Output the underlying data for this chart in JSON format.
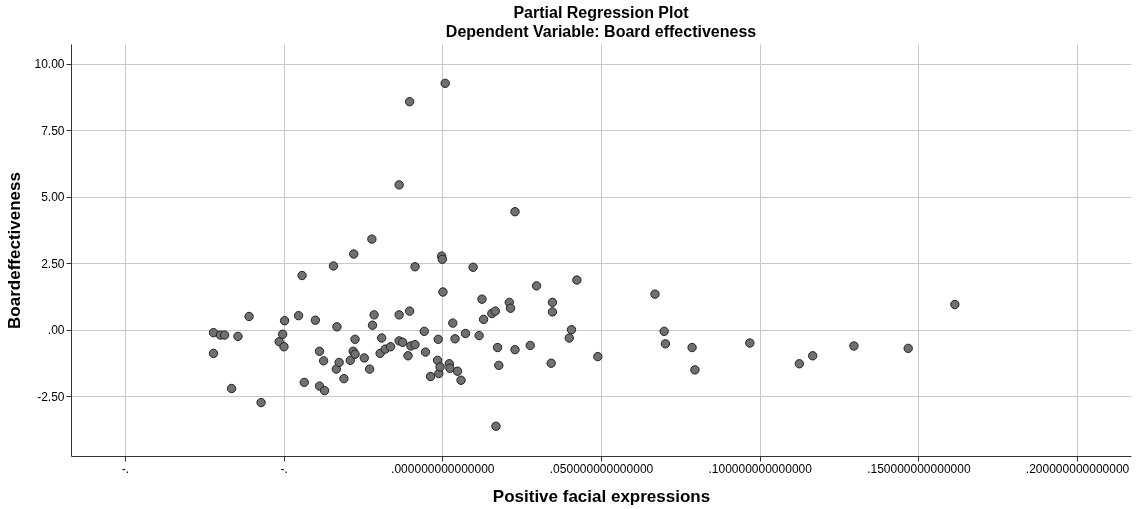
{
  "chart_data": {
    "type": "scatter",
    "title": "Partial Regression Plot",
    "subtitle": "Dependent Variable: Board effectiveness",
    "xlabel": "Positive facial expressions",
    "ylabel": "Boardeffectiveness",
    "x": [
      -0.0721,
      -0.0721,
      -0.0699,
      -0.0686,
      -0.0644,
      -0.0609,
      -0.0664,
      -0.0571,
      -0.0514,
      -0.0503,
      -0.0499,
      -0.0497,
      -0.0453,
      -0.0435,
      -0.0442,
      -0.04,
      -0.0387,
      -0.0387,
      -0.0374,
      -0.0371,
      -0.0343,
      -0.0332,
      -0.0334,
      -0.0325,
      -0.031,
      -0.029,
      -0.0281,
      -0.0279,
      -0.0275,
      -0.0275,
      -0.0246,
      -0.0229,
      -0.0222,
      -0.022,
      -0.0215,
      -0.0196,
      -0.0191,
      -0.018,
      -0.0163,
      -0.0136,
      -0.0136,
      -0.0136,
      -0.0125,
      -0.0108,
      -0.0103,
      -0.0103,
      -0.0099,
      -0.0086,
      -0.0086,
      -0.0057,
      -0.0053,
      -0.0037,
      -0.0015,
      -0.0013,
      -0.0011,
      -0.0007,
      -0.0002,
      0.0,
      0.0002,
      0.0009,
      0.0022,
      0.0024,
      0.0033,
      0.004,
      0.0048,
      0.0059,
      0.0073,
      0.0097,
      0.0116,
      0.0125,
      0.013,
      0.0156,
      0.0167,
      0.0169,
      0.0174,
      0.0178,
      0.0211,
      0.0215,
      0.0229,
      0.0229,
      0.0277,
      0.0297,
      0.0343,
      0.0347,
      0.0347,
      0.04,
      0.0407,
      0.0424,
      0.049,
      0.067,
      0.0699,
      0.0703,
      0.0787,
      0.0796,
      0.0969,
      0.1125,
      0.1167,
      0.1297,
      0.1468,
      0.1615
    ],
    "values": [
      -0.11,
      -0.89,
      -0.2,
      -0.2,
      -0.25,
      0.5,
      -2.21,
      -2.74,
      -0.45,
      -0.17,
      -0.64,
      0.34,
      0.53,
      -1.98,
      2.04,
      0.36,
      -0.81,
      -2.12,
      -1.17,
      -2.29,
      2.4,
      0.11,
      -1.48,
      -1.23,
      -1.84,
      -1.15,
      -0.81,
      2.85,
      -0.36,
      -0.92,
      -1.06,
      -1.48,
      3.41,
      0.17,
      0.56,
      -0.89,
      -0.31,
      -0.73,
      -0.64,
      5.45,
      0.56,
      -0.42,
      -0.47,
      -0.98,
      8.58,
      0.7,
      -0.61,
      2.37,
      -0.56,
      -0.06,
      -0.84,
      -1.76,
      -1.15,
      -0.36,
      -1.65,
      -1.4,
      2.77,
      2.65,
      1.42,
      9.27,
      -1.28,
      -1.45,
      0.25,
      -0.34,
      -1.56,
      -1.9,
      -0.14,
      2.35,
      -0.22,
      1.15,
      0.39,
      0.61,
      0.7,
      -3.63,
      -0.67,
      -1.34,
      1.03,
      0.81,
      4.44,
      -0.75,
      -0.59,
      1.65,
      -1.26,
      1.03,
      0.67,
      -0.31,
      0.0,
      1.87,
      -1.01,
      1.34,
      -0.06,
      -0.53,
      -0.67,
      -1.51,
      -0.5,
      -1.28,
      -0.98,
      -0.61,
      -0.7,
      0.95
    ],
    "color": "#707070",
    "marker": "circle",
    "grid": true,
    "xlim": [
      -0.117,
      0.217
    ],
    "ylim": [
      -4.75,
      10.75
    ],
    "xticks": [
      {
        "value": -0.1,
        "label": "-."
      },
      {
        "value": -0.05,
        "label": "-."
      },
      {
        "value": 0,
        "label": ".000000000000000"
      },
      {
        "value": 0.05,
        "label": ".050000000000000"
      },
      {
        "value": 0.1,
        "label": ".100000000000000"
      },
      {
        "value": 0.15,
        "label": ".150000000000000"
      },
      {
        "value": 0.2,
        "label": ".200000000000000"
      }
    ],
    "yticks": [
      {
        "value": -2.5,
        "label": "-2.50"
      },
      {
        "value": 0,
        "label": ".00"
      },
      {
        "value": 2.5,
        "label": "2.50"
      },
      {
        "value": 5,
        "label": "5.00"
      },
      {
        "value": 7.5,
        "label": "7.50"
      },
      {
        "value": 10,
        "label": "10.00"
      }
    ]
  }
}
